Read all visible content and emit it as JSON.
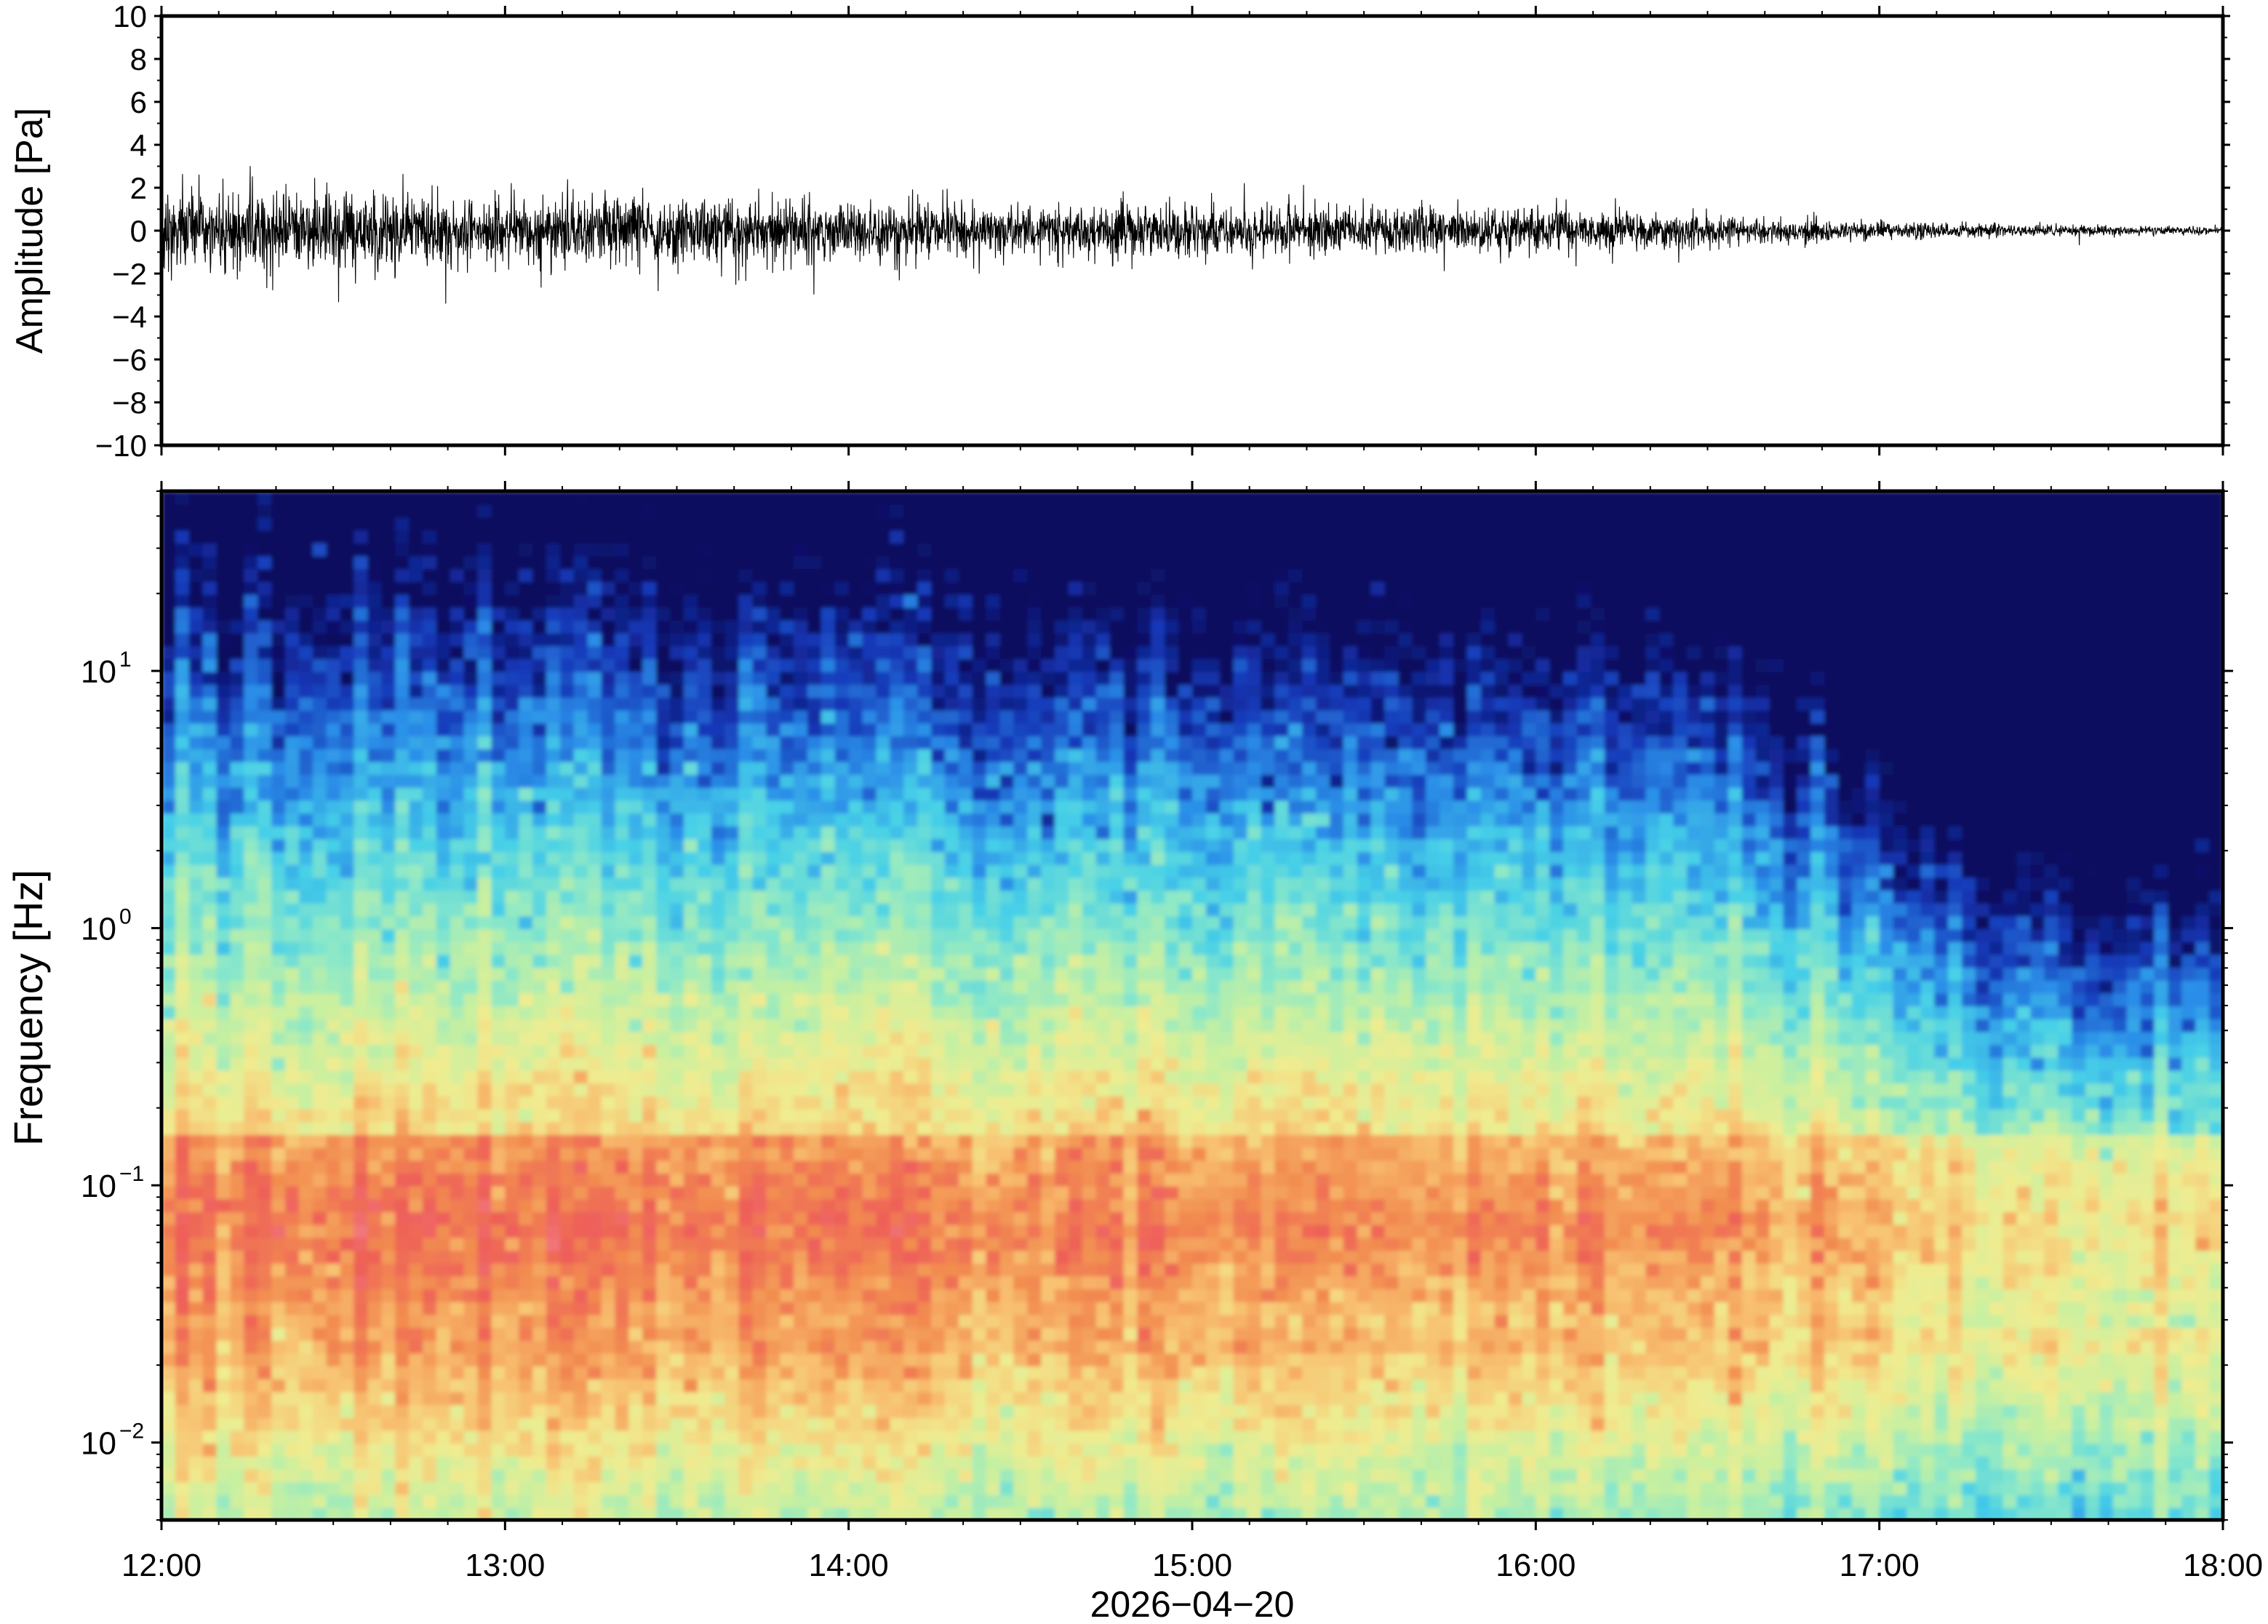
{
  "chart_data": [
    {
      "type": "line",
      "panel": "waveform",
      "ylabel": "Amplitude [Pa]",
      "ylim": [
        -10,
        10
      ],
      "yticks": [
        {
          "value": 10,
          "label": "10"
        },
        {
          "value": 8,
          "label": "8"
        },
        {
          "value": 6,
          "label": "6"
        },
        {
          "value": 4,
          "label": "4"
        },
        {
          "value": 2,
          "label": "2"
        },
        {
          "value": 0,
          "label": "0"
        },
        {
          "value": -2,
          "label": "−2"
        },
        {
          "value": -4,
          "label": "−4"
        },
        {
          "value": -6,
          "label": "−6"
        },
        {
          "value": -8,
          "label": "−8"
        },
        {
          "value": -10,
          "label": "−10"
        }
      ],
      "x_range_hours": [
        12,
        18
      ],
      "envelope": {
        "x": [
          12.0,
          12.5,
          13.0,
          13.5,
          14.0,
          14.5,
          15.0,
          15.5,
          16.0,
          16.5,
          17.0,
          17.5,
          18.0
        ],
        "amplitude": [
          2.3,
          2.1,
          1.9,
          1.8,
          1.6,
          1.5,
          1.4,
          1.3,
          1.2,
          0.9,
          0.5,
          0.3,
          0.2
        ],
        "peak_max": 3.2,
        "peak_min": -3.4
      },
      "color": "#000000"
    },
    {
      "type": "heatmap",
      "panel": "spectrogram",
      "ylabel": "Frequency [Hz]",
      "yscale": "log",
      "ylim": [
        0.005,
        50
      ],
      "yticks": [
        {
          "value": 10,
          "label": "10",
          "exp": "1"
        },
        {
          "value": 1,
          "label": "10",
          "exp": "0"
        },
        {
          "value": 0.1,
          "label": "10",
          "exp": "−1"
        },
        {
          "value": 0.01,
          "label": "10",
          "exp": "−2"
        }
      ],
      "xlabel": "2026−04−20",
      "xticks": [
        "12:00",
        "13:00",
        "14:00",
        "15:00",
        "16:00",
        "17:00",
        "18:00"
      ],
      "colormap": [
        "#0a0c5e",
        "#1638b8",
        "#2b8ee8",
        "#46d0e8",
        "#8ce8c8",
        "#c8f0a0",
        "#f0ec90",
        "#f8c070",
        "#f28c50",
        "#ee5f58",
        "#f27a80"
      ],
      "description_bands": {
        "high_freq_power_time": [
          12,
          18
        ],
        "peak_band_hz": [
          0.04,
          0.2
        ]
      }
    }
  ]
}
